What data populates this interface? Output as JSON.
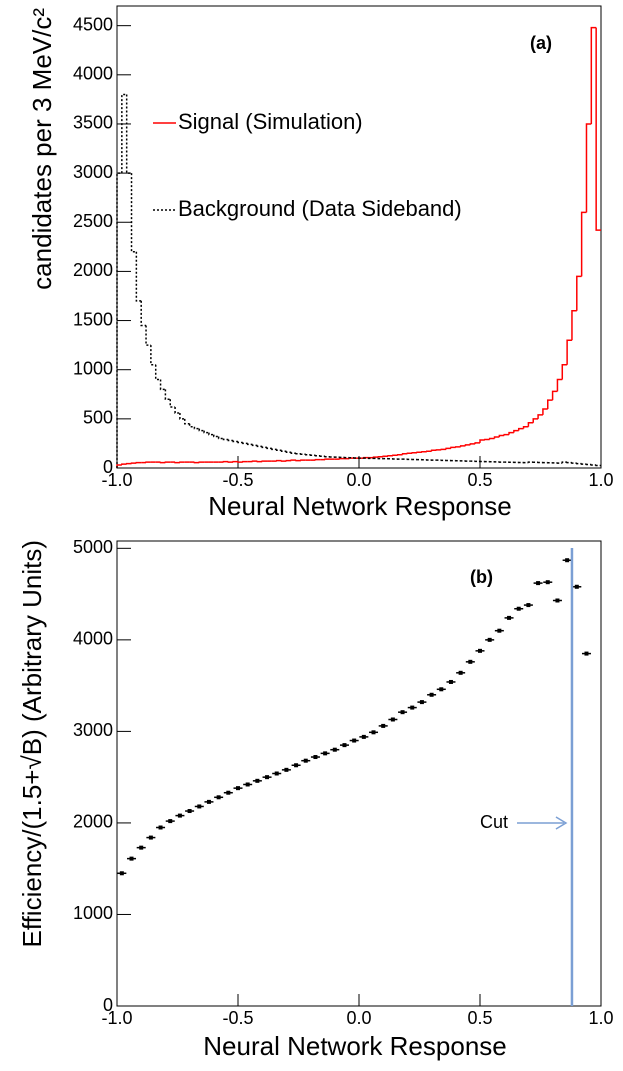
{
  "chart_data": [
    {
      "type": "histogram",
      "annotation": "(a)",
      "x_label": "Neural Network Response",
      "y_label": "candidates per 3 MeV/c²",
      "xlim": [
        -1,
        1
      ],
      "ylim": [
        0,
        4700
      ],
      "xticks": [
        {
          "value": -1,
          "label": "-1.0"
        },
        -0.5,
        {
          "value": 0,
          "label": "0.0"
        },
        0.5,
        {
          "value": 1,
          "label": "1.0"
        }
      ],
      "yticks": [
        0,
        500,
        1000,
        1500,
        2000,
        2500,
        3000,
        3500,
        4000,
        4500
      ],
      "bins": [
        -1,
        -0.98,
        -0.96,
        -0.94,
        -0.92,
        -0.9,
        -0.88,
        -0.86,
        -0.84,
        -0.82,
        -0.8,
        -0.78,
        -0.76,
        -0.74,
        -0.72,
        -0.7,
        -0.68,
        -0.66,
        -0.64,
        -0.62,
        -0.6,
        -0.58,
        -0.56,
        -0.54,
        -0.52,
        -0.5,
        -0.48,
        -0.46,
        -0.44,
        -0.42,
        -0.4,
        -0.38,
        -0.36,
        -0.34,
        -0.32,
        -0.3,
        -0.28,
        -0.26,
        -0.24,
        -0.22,
        -0.2,
        -0.18,
        -0.16,
        -0.14,
        -0.12,
        -0.1,
        -0.08,
        -0.06,
        -0.04,
        -0.02,
        0,
        0.02,
        0.04,
        0.06,
        0.08,
        0.1,
        0.12,
        0.14,
        0.16,
        0.18,
        0.2,
        0.22,
        0.24,
        0.26,
        0.28,
        0.3,
        0.32,
        0.34,
        0.36,
        0.38,
        0.4,
        0.42,
        0.44,
        0.46,
        0.48,
        0.5,
        0.52,
        0.54,
        0.56,
        0.58,
        0.6,
        0.62,
        0.64,
        0.66,
        0.68,
        0.7,
        0.72,
        0.74,
        0.76,
        0.78,
        0.8,
        0.82,
        0.84,
        0.86,
        0.88,
        0.9,
        0.92,
        0.94,
        0.96,
        0.98,
        1
      ],
      "series": [
        {
          "name": "Signal (Simulation)",
          "color": "#ff0000",
          "dashed": false,
          "values": [
            30,
            40,
            45,
            50,
            55,
            55,
            60,
            60,
            60,
            55,
            60,
            60,
            55,
            60,
            60,
            60,
            55,
            60,
            60,
            60,
            60,
            60,
            65,
            60,
            65,
            60,
            65,
            65,
            70,
            65,
            70,
            70,
            70,
            75,
            70,
            75,
            80,
            75,
            80,
            80,
            80,
            85,
            85,
            90,
            90,
            90,
            95,
            95,
            100,
            100,
            100,
            105,
            105,
            110,
            115,
            120,
            125,
            130,
            135,
            145,
            150,
            155,
            160,
            165,
            170,
            180,
            185,
            190,
            200,
            210,
            215,
            225,
            235,
            245,
            255,
            285,
            290,
            300,
            315,
            330,
            340,
            360,
            380,
            400,
            420,
            460,
            500,
            540,
            600,
            690,
            780,
            900,
            1050,
            1300,
            1600,
            1950,
            2600,
            3500,
            4480,
            2420
          ]
        },
        {
          "name": "Background (Data Sideband)",
          "color": "#000000",
          "dashed": true,
          "values": [
            3000,
            3800,
            3000,
            2200,
            1700,
            1450,
            1250,
            1050,
            900,
            800,
            700,
            620,
            560,
            500,
            450,
            420,
            400,
            380,
            360,
            340,
            320,
            300,
            290,
            280,
            270,
            260,
            250,
            240,
            230,
            220,
            210,
            200,
            190,
            180,
            170,
            160,
            150,
            145,
            140,
            135,
            130,
            125,
            120,
            115,
            112,
            110,
            108,
            106,
            104,
            102,
            100,
            100,
            98,
            98,
            96,
            95,
            94,
            92,
            90,
            90,
            88,
            86,
            85,
            84,
            82,
            80,
            80,
            78,
            76,
            75,
            74,
            72,
            70,
            70,
            68,
            66,
            65,
            64,
            62,
            60,
            60,
            58,
            57,
            56,
            55,
            60,
            58,
            56,
            55,
            54,
            52,
            50,
            60,
            55,
            50,
            45,
            40,
            35,
            30,
            25
          ]
        }
      ]
    },
    {
      "type": "scatter",
      "annotation": "(b)",
      "x_label": "Neural Network Response",
      "y_label": "Efficiency/(1.5+√B) (Arbitrary Units)",
      "xlim": [
        -1,
        1
      ],
      "ylim": [
        0,
        5080
      ],
      "xticks": [
        {
          "value": -1,
          "label": "-1.0"
        },
        -0.5,
        {
          "value": 0,
          "label": "0.0"
        },
        0.5,
        {
          "value": 1,
          "label": "1.0"
        }
      ],
      "yticks": [
        0,
        1000,
        2000,
        3000,
        4000,
        5000
      ],
      "color": "#000000",
      "x": [
        -0.98,
        -0.94,
        -0.9,
        -0.86,
        -0.82,
        -0.78,
        -0.74,
        -0.7,
        -0.66,
        -0.62,
        -0.58,
        -0.54,
        -0.5,
        -0.46,
        -0.42,
        -0.38,
        -0.34,
        -0.3,
        -0.26,
        -0.22,
        -0.18,
        -0.14,
        -0.1,
        -0.06,
        -0.02,
        0.02,
        0.06,
        0.1,
        0.14,
        0.18,
        0.22,
        0.26,
        0.3,
        0.34,
        0.38,
        0.42,
        0.46,
        0.5,
        0.54,
        0.58,
        0.62,
        0.66,
        0.7,
        0.74,
        0.78,
        0.82,
        0.86,
        0.9,
        0.94
      ],
      "values": [
        1450,
        1610,
        1730,
        1840,
        1950,
        2020,
        2080,
        2130,
        2180,
        2230,
        2280,
        2330,
        2380,
        2420,
        2460,
        2500,
        2540,
        2580,
        2630,
        2680,
        2720,
        2760,
        2800,
        2850,
        2900,
        2940,
        2990,
        3060,
        3130,
        3210,
        3260,
        3320,
        3400,
        3460,
        3540,
        3640,
        3760,
        3880,
        4000,
        4100,
        4240,
        4340,
        4380,
        4620,
        4630,
        4430,
        4870,
        4580,
        3850
      ],
      "cut": {
        "label": "Cut",
        "x": 0.88,
        "color": "#7b9fd4"
      }
    }
  ]
}
